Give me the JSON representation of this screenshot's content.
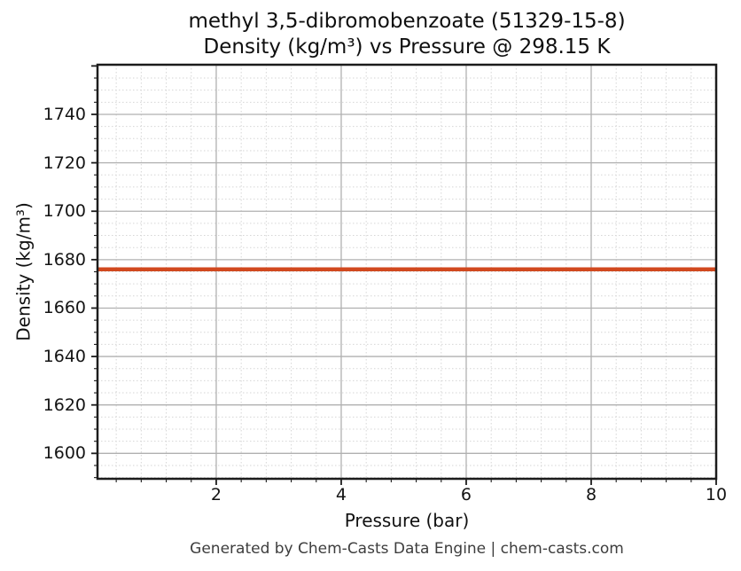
{
  "chart_data": {
    "type": "line",
    "title_line1": "methyl 3,5-dibromobenzoate (51329-15-8)",
    "title_line2": "Density (kg/m³) vs Pressure @ 298.15 K",
    "xlabel": "Pressure (bar)",
    "ylabel": "Density (kg/m³)",
    "compound": "methyl 3,5-dibromobenzoate",
    "cas_number": "51329-15-8",
    "temperature_K": 298.15,
    "xlim": [
      0.1,
      10
    ],
    "ylim": [
      1589.5,
      1760.5
    ],
    "x_ticks": [
      2,
      4,
      6,
      8,
      10
    ],
    "y_ticks": [
      1600,
      1620,
      1640,
      1660,
      1680,
      1700,
      1720,
      1740
    ],
    "x_minor_step": 0.4,
    "y_minor_step": 5,
    "x_major_step": 2,
    "y_major_step": 20,
    "grid": {
      "major": true,
      "minor": true,
      "major_color": "#b0b0b0",
      "minor_color": "#d6d6d6"
    },
    "axis_color": "#1c1c1c",
    "legend": "none",
    "series": [
      {
        "name": "Density",
        "color": "#d1491f",
        "line_width": 4.5,
        "x": [
          0.1,
          10
        ],
        "y": [
          1676,
          1676
        ]
      }
    ],
    "constant_density_kg_m3": 1676
  },
  "footer": {
    "text": "Generated by Chem-Casts Data Engine | chem-casts.com"
  }
}
